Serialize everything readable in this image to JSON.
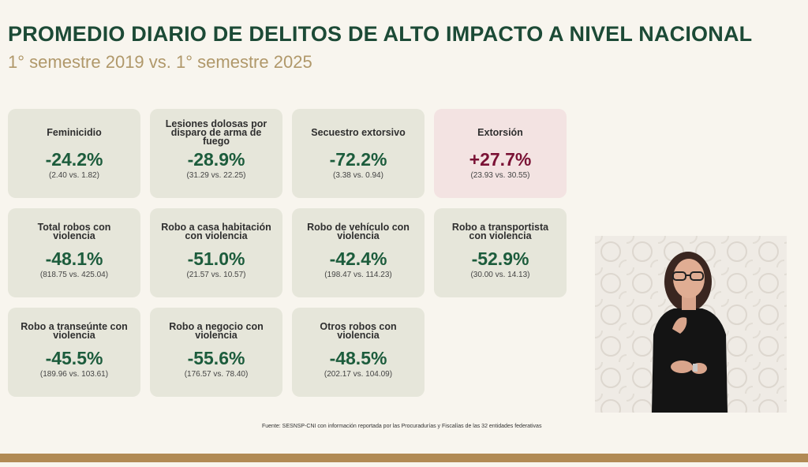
{
  "header": {
    "title": "PROMEDIO DIARIO DE DELITOS DE ALTO IMPACTO A NIVEL NACIONAL",
    "subtitle": "1° semestre 2019 vs. 1° semestre 2025"
  },
  "cards": [
    {
      "name": "Feminicidio",
      "pct": "-24.2%",
      "cmp": "(2.40 vs. 1.82)"
    },
    {
      "name": "Lesiones dolosas por disparo de arma de fuego",
      "pct": "-28.9%",
      "cmp": "(31.29 vs. 22.25)"
    },
    {
      "name": "Secuestro extorsivo",
      "pct": "-72.2%",
      "cmp": "(3.38 vs. 0.94)"
    },
    {
      "name": "Extorsión",
      "pct": "+27.7%",
      "cmp": "(23.93 vs. 30.55)"
    },
    {
      "name": "Total robos con violencia",
      "pct": "-48.1%",
      "cmp": "(818.75 vs. 425.04)"
    },
    {
      "name": "Robo a casa habitación con violencia",
      "pct": "-51.0%",
      "cmp": "(21.57 vs. 10.57)"
    },
    {
      "name": "Robo de vehículo con violencia",
      "pct": "-42.4%",
      "cmp": "(198.47 vs. 114.23)"
    },
    {
      "name": "Robo a transportista con violencia",
      "pct": "-52.9%",
      "cmp": "(30.00 vs. 14.13)"
    },
    {
      "name": "Robo a transeúnte con violencia",
      "pct": "-45.5%",
      "cmp": "(189.96 vs. 103.61)"
    },
    {
      "name": "Robo a negocio con violencia",
      "pct": "-55.6%",
      "cmp": "(176.57 vs. 78.40)"
    },
    {
      "name": "Otros robos con violencia",
      "pct": "-48.5%",
      "cmp": "(202.17 vs. 104.09)"
    }
  ],
  "source": "Fuente: SESNSP-CNI con información reportada por las Procuradurías y Fiscalías de las 32 entidades federativas",
  "colors": {
    "title": "#1c4a36",
    "subtitle": "#b0986a",
    "decrease": "#1c5c3c",
    "increase": "#7a1235",
    "card_bg": "#e6e6da",
    "card_bg_increase": "#f3e3e2",
    "bottom_band": "#b18a54"
  }
}
